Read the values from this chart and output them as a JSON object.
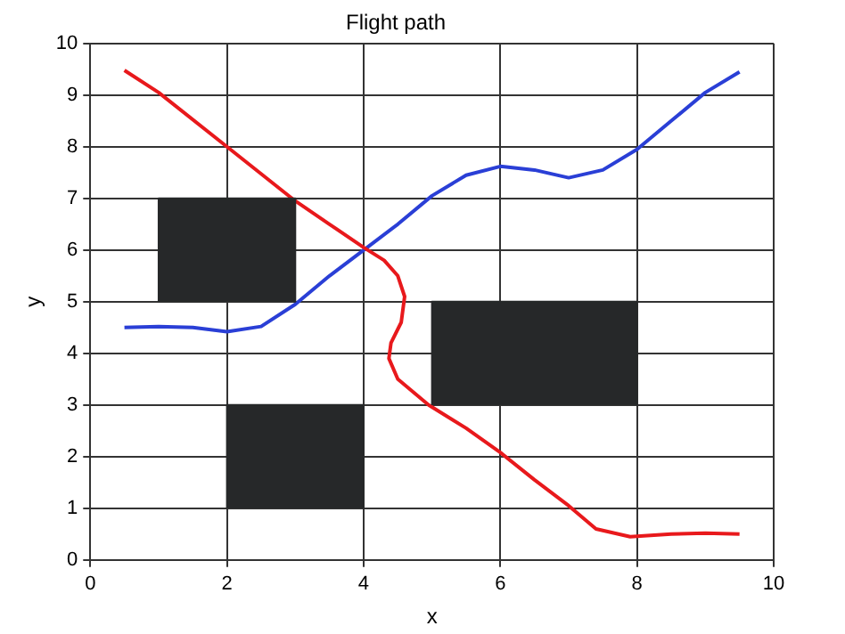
{
  "chart_data": {
    "type": "line",
    "title": "Flight path",
    "xlabel": "x",
    "ylabel": "y",
    "xlim": [
      0,
      10
    ],
    "ylim": [
      0,
      10
    ],
    "xticks": [
      0,
      2,
      4,
      6,
      8,
      10
    ],
    "yticks": [
      0,
      1,
      2,
      3,
      4,
      5,
      6,
      7,
      8,
      9,
      10
    ],
    "grid": true,
    "legend": false,
    "marker": "none",
    "line_style": "solid",
    "series": [
      {
        "type": "area",
        "color": "#262829",
        "x": [
          1,
          1,
          3,
          3
        ],
        "values": [
          5,
          7,
          7,
          5
        ]
      },
      {
        "type": "area",
        "color": "#262829",
        "x": [
          2,
          2,
          4,
          4
        ],
        "values": [
          1,
          3,
          3,
          1
        ]
      },
      {
        "type": "area",
        "color": "#262829",
        "x": [
          5,
          5,
          8,
          8
        ],
        "values": [
          3,
          5,
          5,
          3
        ]
      },
      {
        "color": "#e8191c",
        "x": [
          0.5,
          1,
          2,
          3,
          3.5,
          4,
          4.3,
          4.5,
          4.6,
          4.55,
          4.4,
          4.37,
          4.5,
          4.95,
          5.5,
          6,
          6.5,
          7,
          7.4,
          7.9,
          8.5,
          9,
          9.5
        ],
        "values": [
          9.48,
          9.05,
          8,
          6.95,
          6.5,
          6.05,
          5.8,
          5.5,
          5.1,
          4.6,
          4.2,
          3.9,
          3.5,
          3.0,
          2.55,
          2.08,
          1.55,
          1.05,
          0.6,
          0.45,
          0.5,
          0.52,
          0.5
        ]
      },
      {
        "color": "#2a3fd6",
        "x": [
          0.5,
          1,
          1.5,
          2,
          2.5,
          3,
          3.5,
          4,
          4.5,
          5,
          5.5,
          6,
          6.5,
          7,
          7.5,
          8,
          8.5,
          9,
          9.5
        ],
        "values": [
          4.5,
          4.52,
          4.5,
          4.42,
          4.52,
          4.95,
          5.5,
          6.0,
          6.5,
          7.05,
          7.45,
          7.62,
          7.55,
          7.4,
          7.55,
          7.95,
          8.5,
          9.05,
          9.45
        ]
      }
    ]
  }
}
